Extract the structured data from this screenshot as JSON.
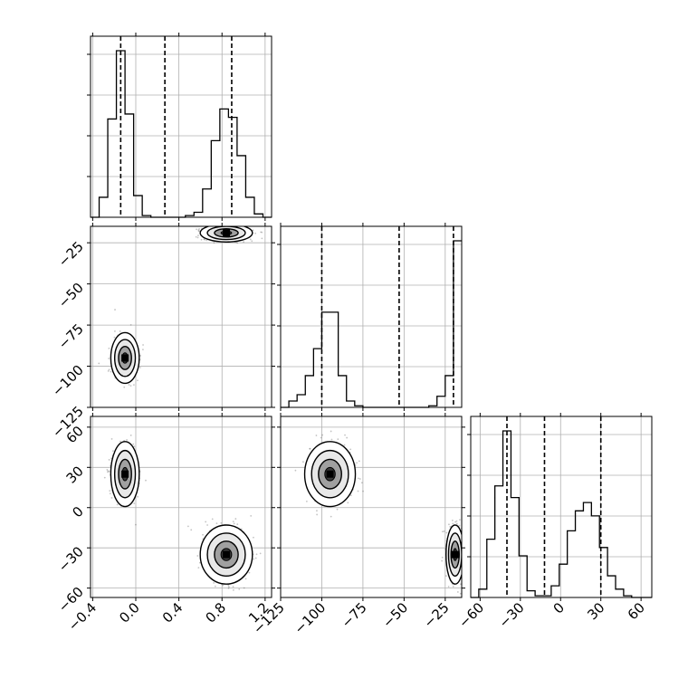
{
  "chart_data": {
    "type": "corner",
    "grid": true,
    "params": [
      {
        "range": [
          -0.42,
          1.26
        ],
        "ticks": [
          -0.4,
          0.0,
          0.4,
          0.8,
          1.2
        ],
        "tick_labels": [
          "−0.4",
          "0.0",
          "0.4",
          "0.8",
          "1.2"
        ],
        "hist_bin_edges": [
          -0.42,
          -0.34,
          -0.26,
          -0.18,
          -0.1,
          -0.02,
          0.06,
          0.14,
          0.22,
          0.3,
          0.38,
          0.46,
          0.54,
          0.62,
          0.7,
          0.78,
          0.86,
          0.94,
          1.02,
          1.1,
          1.18,
          1.26
        ],
        "hist_counts": [
          0,
          0.12,
          0.59,
          1.0,
          0.62,
          0.13,
          0.01,
          0,
          0,
          0,
          0,
          0.01,
          0.03,
          0.17,
          0.46,
          0.65,
          0.6,
          0.37,
          0.12,
          0.02,
          0
        ],
        "quantiles": [
          -0.14,
          0.27,
          0.89
        ]
      },
      {
        "range": [
          -125,
          -15
        ],
        "ticks": [
          -125,
          -100,
          -75,
          -50,
          -25
        ],
        "tick_labels": [
          "−125",
          "−100",
          "−75",
          "−50",
          "−25"
        ],
        "hist_bin_edges": [
          -125,
          -120,
          -115,
          -110,
          -105,
          -100,
          -95,
          -90,
          -85,
          -80,
          -75,
          -70,
          -65,
          -60,
          -55,
          -50,
          -45,
          -40,
          -35,
          -30,
          -25,
          -20,
          -15
        ],
        "hist_counts": [
          0,
          0.04,
          0.08,
          0.2,
          0.37,
          0.6,
          0.6,
          0.2,
          0.04,
          0.01,
          0,
          0,
          0,
          0,
          0,
          0,
          0,
          0,
          0.01,
          0.07,
          0.2,
          1.05
        ],
        "quantiles": [
          -100,
          -53,
          -20
        ]
      },
      {
        "range": [
          -67,
          68
        ],
        "ticks": [
          -60,
          -30,
          0,
          30,
          60
        ],
        "tick_labels": [
          "−60",
          "−30",
          "0",
          "30",
          "60"
        ],
        "hist_bin_edges": [
          -67,
          -61,
          -55,
          -49,
          -43,
          -37,
          -31,
          -25,
          -19,
          -13,
          -7,
          -1,
          5,
          11,
          17,
          23,
          29,
          35,
          41,
          47,
          53,
          59,
          65,
          68
        ],
        "hist_counts": [
          0,
          0.05,
          0.35,
          0.67,
          1.0,
          0.6,
          0.25,
          0.04,
          0.01,
          0.01,
          0.07,
          0.2,
          0.4,
          0.52,
          0.57,
          0.49,
          0.3,
          0.13,
          0.05,
          0.01,
          0,
          0,
          0
        ],
        "quantiles": [
          -40,
          -12,
          30
        ]
      }
    ],
    "clusters": [
      {
        "center": [
          -0.1,
          -95,
          25
        ],
        "sd": [
          0.06,
          7,
          11
        ]
      },
      {
        "center": [
          0.84,
          -19,
          -35
        ],
        "sd": [
          0.11,
          2.5,
          10
        ]
      }
    ]
  }
}
